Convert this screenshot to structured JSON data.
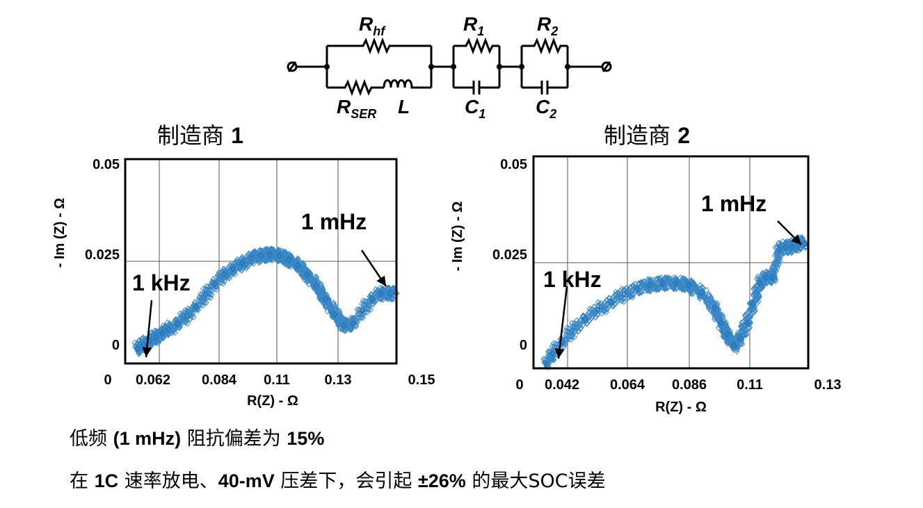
{
  "circuit": {
    "labels": {
      "rhf_main": "R",
      "rhf_sub": "hf",
      "rser_main": "R",
      "rser_sub": "SER",
      "l": "L",
      "r1_main": "R",
      "r1_sub": "1",
      "c1_main": "C",
      "c1_sub": "1",
      "r2_main": "R",
      "r2_sub": "2",
      "c2_main": "C",
      "c2_sub": "2"
    }
  },
  "chart_data": [
    {
      "type": "scatter",
      "title_text": "制造商",
      "title_num": "1",
      "xlabel": "R(Z) - Ω",
      "ylabel": "- Im (Z) - Ω",
      "x_ticks": [
        "0",
        "0.062",
        "0.084",
        "0.11",
        "0.13",
        "0.15"
      ],
      "y_ticks": [
        "0.05",
        "0.025",
        "0"
      ],
      "xlim": [
        0.053,
        0.141
      ],
      "ylim": [
        -0.004,
        0.05
      ],
      "grid": true,
      "marker": "diamond-open",
      "color": "#3a87c6",
      "annotations": [
        {
          "text": "1 kHz",
          "x": 0.059,
          "y": 0.0
        },
        {
          "text": "1 mHz",
          "x": 0.14,
          "y": 0.015
        }
      ],
      "x": [
        0.057,
        0.059,
        0.061,
        0.063,
        0.065,
        0.067,
        0.07,
        0.073,
        0.076,
        0.079,
        0.082,
        0.085,
        0.088,
        0.091,
        0.094,
        0.097,
        0.1,
        0.103,
        0.106,
        0.109,
        0.112,
        0.115,
        0.118,
        0.121,
        0.124,
        0.127,
        0.13,
        0.133,
        0.136,
        0.139,
        0.141
      ],
      "y": [
        0.0,
        0.001,
        0.002,
        0.003,
        0.004,
        0.005,
        0.0065,
        0.0085,
        0.011,
        0.014,
        0.017,
        0.0195,
        0.021,
        0.0225,
        0.0238,
        0.0245,
        0.0248,
        0.0245,
        0.0235,
        0.022,
        0.0195,
        0.0165,
        0.013,
        0.009,
        0.006,
        0.0065,
        0.01,
        0.013,
        0.0145,
        0.0145,
        0.0145
      ]
    },
    {
      "type": "scatter",
      "title_text": "制造商",
      "title_num": "2",
      "xlabel": "R(Z) - Ω",
      "ylabel": "- Im (Z) - Ω",
      "x_ticks": [
        "0",
        "0.042",
        "0.064",
        "0.086",
        "0.11",
        "0.13"
      ],
      "y_ticks": [
        "0.05",
        "0.025",
        "0"
      ],
      "xlim": [
        0.036,
        0.121
      ],
      "ylim": [
        -0.006,
        0.05
      ],
      "grid": true,
      "marker": "diamond-open",
      "color": "#3a87c6",
      "annotations": [
        {
          "text": "1 kHz",
          "x": 0.04,
          "y": -0.005
        },
        {
          "text": "1 mHz",
          "x": 0.119,
          "y": 0.027
        }
      ],
      "x": [
        0.04,
        0.042,
        0.045,
        0.048,
        0.052,
        0.056,
        0.06,
        0.064,
        0.068,
        0.072,
        0.076,
        0.08,
        0.084,
        0.088,
        0.092,
        0.094,
        0.096,
        0.098,
        0.1,
        0.102,
        0.104,
        0.106,
        0.108,
        0.11,
        0.112,
        0.114,
        0.116,
        0.118,
        0.12
      ],
      "y": [
        -0.005,
        -0.002,
        0.001,
        0.004,
        0.007,
        0.0095,
        0.0115,
        0.0135,
        0.015,
        0.016,
        0.0165,
        0.0165,
        0.016,
        0.014,
        0.01,
        0.006,
        0.003,
        0.0,
        0.002,
        0.006,
        0.011,
        0.0165,
        0.018,
        0.018,
        0.0255,
        0.026,
        0.026,
        0.027,
        0.027
      ]
    }
  ],
  "notes": {
    "line1": {
      "p1": "低频 ",
      "b1": "(1 mHz)",
      "p2": " 阻抗偏差为 ",
      "b2": "15%"
    },
    "line2": {
      "p1": "在 ",
      "b1": "1C",
      "p2": " 速率放电、",
      "b2": "40-mV",
      "p3": " 压差下，会引起 ",
      "b3": "±26%",
      "p4": " 的最大SOC误差"
    }
  }
}
